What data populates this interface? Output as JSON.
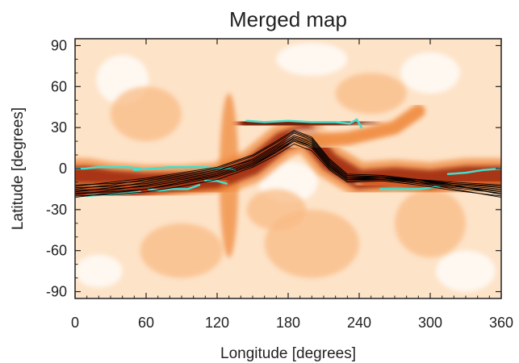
{
  "chart_data": {
    "type": "heatmap",
    "title": "Merged map",
    "xlabel": "Longitude [degrees]",
    "ylabel": "Latitude [degrees]",
    "xlim": [
      0,
      360
    ],
    "ylim": [
      -95,
      95
    ],
    "xticks": [
      0,
      60,
      120,
      180,
      240,
      300,
      360
    ],
    "yticks": [
      90,
      60,
      30,
      0,
      -30,
      -60,
      -90
    ],
    "grid": false,
    "legend": "none",
    "colormap": [
      "#ffffff",
      "#fde3c8",
      "#f9bb85",
      "#f08a3c",
      "#d4561b",
      "#a02a08",
      "#6e1500"
    ],
    "features": {
      "bands": [
        {
          "x": [
            0,
            10,
            30,
            60,
            90,
            120,
            150,
            175,
            195,
            215,
            240,
            270,
            300,
            330,
            360
          ],
          "y": [
            -5,
            -5,
            -8,
            -10,
            -10,
            -8,
            2,
            20,
            26,
            5,
            -8,
            -6,
            -8,
            -5,
            -5
          ],
          "width": 14,
          "level": 5
        },
        {
          "x": [
            145,
            170,
            200,
            230,
            250
          ],
          "y": [
            34,
            33,
            33,
            34,
            32
          ],
          "width": 10,
          "level": 6
        },
        {
          "x": [
            0,
            20,
            45,
            70,
            95,
            120
          ],
          "y": [
            -18,
            -18,
            -17,
            -14,
            -12,
            -10
          ],
          "width": 8,
          "level": 5
        },
        {
          "x": [
            245,
            270,
            300,
            330,
            360
          ],
          "y": [
            -10,
            -12,
            -12,
            -12,
            -10
          ],
          "width": 8,
          "level": 4
        },
        {
          "x": [
            190,
            230,
            270,
            290
          ],
          "y": [
            20,
            22,
            30,
            42
          ],
          "width": 10,
          "level": 3
        }
      ]
    },
    "series": [
      {
        "color": "#40e0d0",
        "x": [
          0,
          8,
          20,
          35,
          45,
          55
        ],
        "y": [
          0,
          0,
          1,
          1,
          1,
          0
        ]
      },
      {
        "color": "#40e0d0",
        "x": [
          50,
          65,
          80,
          95,
          110,
          120,
          130,
          135
        ],
        "y": [
          -1,
          0,
          1,
          1,
          1,
          0,
          0,
          -1
        ]
      },
      {
        "color": "#40e0d0",
        "x": [
          10,
          25,
          45,
          55
        ],
        "y": [
          -20,
          -19,
          -18,
          -17
        ]
      },
      {
        "color": "#40e0d0",
        "x": [
          62,
          72,
          82,
          95,
          105
        ],
        "y": [
          -15,
          -16,
          -15,
          -15,
          -12
        ]
      },
      {
        "color": "#40e0d0",
        "x": [
          110,
          120,
          128
        ],
        "y": [
          -9,
          -9,
          -11
        ]
      },
      {
        "color": "#40e0d0",
        "x": [
          145,
          160,
          180,
          200,
          220,
          232,
          238,
          242
        ],
        "y": [
          35,
          34,
          35,
          34,
          34,
          33,
          36,
          30
        ]
      },
      {
        "color": "#40e0d0",
        "x": [
          258,
          275,
          290,
          300,
          308
        ],
        "y": [
          -15,
          -15,
          -15,
          -14,
          -13
        ]
      },
      {
        "color": "#40e0d0",
        "x": [
          315,
          330,
          345,
          360
        ],
        "y": [
          -4,
          -3,
          -1,
          0
        ]
      },
      {
        "color": "#000000",
        "x": [
          0,
          30,
          60,
          90,
          120,
          150,
          170,
          185,
          200,
          215,
          230,
          260,
          290,
          320,
          360
        ],
        "y": [
          -12,
          -11,
          -9,
          -5,
          -1,
          6,
          16,
          24,
          20,
          4,
          -7,
          -7,
          -8,
          -10,
          -12
        ]
      },
      {
        "color": "#000000",
        "x": [
          0,
          30,
          60,
          90,
          120,
          150,
          170,
          185,
          200,
          215,
          230,
          260,
          290,
          320,
          360
        ],
        "y": [
          -14,
          -13,
          -11,
          -7,
          -3,
          5,
          15,
          22,
          18,
          2,
          -8,
          -7,
          -9,
          -11,
          -14
        ]
      },
      {
        "color": "#000000",
        "x": [
          0,
          30,
          60,
          90,
          120,
          150,
          170,
          185,
          200,
          215,
          230,
          260,
          290,
          320,
          360
        ],
        "y": [
          -16,
          -15,
          -13,
          -9,
          -5,
          3,
          13,
          21,
          16,
          1,
          -8,
          -8,
          -10,
          -13,
          -16
        ]
      },
      {
        "color": "#000000",
        "x": [
          0,
          30,
          60,
          90,
          120,
          150,
          170,
          185,
          200,
          215,
          230,
          260,
          290,
          320,
          360
        ],
        "y": [
          -18,
          -17,
          -15,
          -11,
          -6,
          2,
          12,
          20,
          15,
          0,
          -9,
          -8,
          -11,
          -14,
          -18
        ]
      },
      {
        "color": "#000000",
        "x": [
          0,
          30,
          60,
          90,
          120,
          150,
          170,
          185,
          200,
          215,
          230,
          260,
          290,
          320,
          360
        ],
        "y": [
          -20,
          -19,
          -17,
          -13,
          -8,
          1,
          10,
          18,
          13,
          -1,
          -10,
          -9,
          -12,
          -16,
          -20
        ]
      },
      {
        "color": "#000000",
        "x": [
          0,
          30,
          60,
          90,
          120,
          150,
          170,
          185,
          200,
          215,
          230,
          260,
          290,
          320,
          360
        ],
        "y": [
          -19,
          -16,
          -12,
          -8,
          -4,
          4,
          14,
          23,
          19,
          3,
          -7,
          -6,
          -8,
          -12,
          -19
        ]
      },
      {
        "color": "#000000",
        "x": [
          0,
          30,
          60,
          90,
          120,
          150,
          170,
          185,
          200,
          215,
          230,
          260,
          290,
          320,
          360
        ],
        "y": [
          -17,
          -14,
          -10,
          -6,
          -2,
          7,
          17,
          26,
          21,
          5,
          -6,
          -6,
          -9,
          -13,
          -17
        ]
      },
      {
        "color": "#000000",
        "x": [
          0,
          30,
          60,
          90,
          120,
          150,
          170,
          185,
          200,
          215,
          230,
          260,
          290,
          320,
          360
        ],
        "y": [
          -15,
          -12,
          -8,
          -4,
          0,
          9,
          19,
          27,
          22,
          6,
          -5,
          -6,
          -9,
          -12,
          -15
        ]
      },
      {
        "color": "#000000",
        "x": [
          0,
          30,
          60,
          90,
          120,
          150,
          170,
          185,
          200,
          215,
          230,
          260,
          290,
          320,
          360
        ],
        "y": [
          -13,
          -10,
          -7,
          -3,
          1,
          10,
          20,
          28,
          23,
          7,
          -4,
          -5,
          -8,
          -11,
          -13
        ]
      },
      {
        "color": "#000000",
        "x": [
          0,
          30,
          60,
          90,
          120,
          150,
          170,
          185,
          200,
          215,
          230,
          260,
          290,
          320,
          360
        ],
        "y": [
          -21,
          -18,
          -15,
          -10,
          -5,
          3,
          12,
          21,
          17,
          2,
          -8,
          -7,
          -10,
          -15,
          -21
        ]
      }
    ]
  }
}
